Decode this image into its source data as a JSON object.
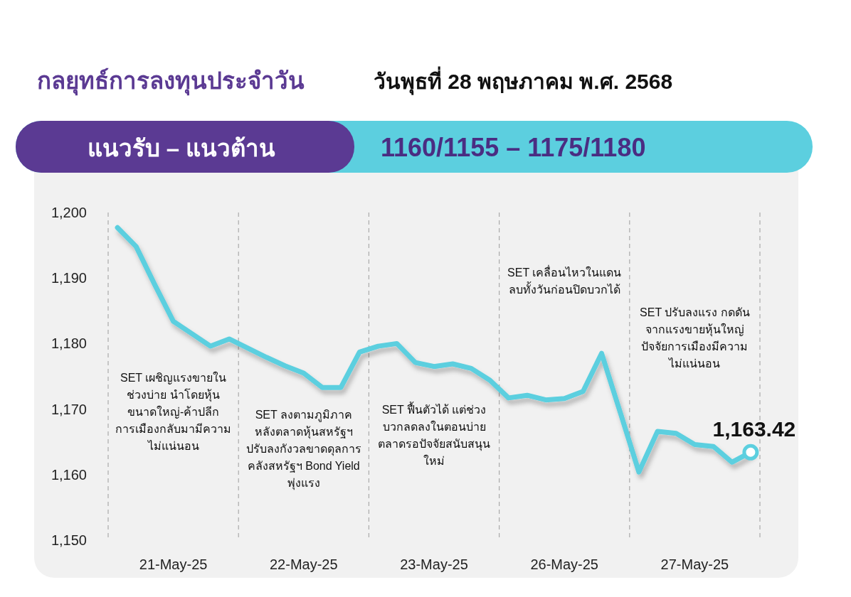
{
  "chart_data": {
    "type": "line",
    "title": "กลยุทธ์การลงทุนประจำวัน",
    "subtitle": "วันพุธที่ 28 พฤษภาคม พ.ศ. 2568",
    "annotations": [
      "แนวรับ – แนวต้าน",
      "1160/1155 – 1175/1180",
      "SET เผชิญแรงขายในช่วงบ่าย นำโดยหุ้นขนาดใหญ่-ค้าปลีก การเมืองกลับมามีความไม่แน่นอน",
      "SET ลงตามภูมิภาค หลังตลาดหุ้นสหรัฐฯ ปรับลงกังวลขาดดุลการคลังสหรัฐฯ Bond Yield พุ่งแรง",
      "SET ฟื้นตัวได้ แต่ช่วงบวกลดลงในตอนบ่าย ตลาดรอปัจจัยสนับสนุนใหม่",
      "SET เคลื่อนไหวในแดนลบทั้งวันก่อนปิดบวกได้",
      "SET ปรับลงแรง กดดันจากแรงขายหุ้นใหญ่ ปัจจัยการเมืองมีความไม่แน่นอน"
    ],
    "categories": [
      null,
      null,
      null,
      "21-May-25",
      null,
      null,
      null,
      null,
      null,
      null,
      "22-May-25",
      null,
      null,
      null,
      null,
      null,
      null,
      "23-May-25",
      null,
      null,
      null,
      null,
      null,
      null,
      "26-May-25",
      null,
      null,
      null,
      null,
      null,
      null,
      "27-May-25",
      null,
      null,
      null
    ],
    "series": [
      {
        "color": "#5ccfdf",
        "values": [
          1197.7,
          1194.8,
          1189.0,
          1183.4,
          1181.5,
          1179.6,
          1180.7,
          1179.3,
          1177.9,
          1176.6,
          1175.5,
          1173.3,
          1173.3,
          1178.7,
          1179.6,
          1180.0,
          1177.1,
          1176.5,
          1176.9,
          1176.2,
          1174.4,
          1171.7,
          1172.1,
          1171.4,
          1171.6,
          1172.7,
          1178.5,
          1169.5,
          1160.4,
          1166.6,
          1166.3,
          1164.6,
          1164.3,
          1161.9,
          1163.42
        ],
        "value_labels": [
          null,
          null,
          null,
          null,
          null,
          null,
          null,
          null,
          null,
          null,
          null,
          null,
          null,
          null,
          null,
          null,
          null,
          null,
          null,
          null,
          null,
          null,
          null,
          null,
          null,
          null,
          null,
          null,
          null,
          null,
          null,
          null,
          null,
          null,
          "1,163.42"
        ]
      }
    ],
    "ylim": [
      1150,
      1200
    ],
    "yticks": [
      {
        "value": 1150,
        "label": "1,150"
      },
      {
        "value": 1160,
        "label": "1,160"
      },
      {
        "value": 1170,
        "label": "1,170"
      },
      {
        "value": 1180,
        "label": "1,180"
      },
      {
        "value": 1190,
        "label": "1,190"
      },
      {
        "value": 1200,
        "label": "1,200"
      }
    ],
    "grid": false,
    "marker": "none",
    "line_style": "solid"
  }
}
